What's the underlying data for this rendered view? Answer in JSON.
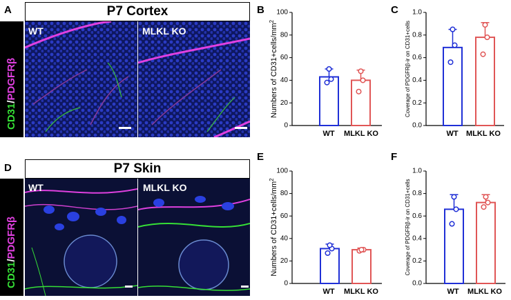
{
  "figure": {
    "panels": {
      "A": {
        "letter": "A",
        "title": "P7 Cortex",
        "left_label": "WT",
        "right_label": "MLKL KO"
      },
      "D": {
        "letter": "D",
        "title": "P7 Skin",
        "left_label": "WT",
        "right_label": "MLKL KO"
      }
    },
    "side_label": {
      "part1": "CD31",
      "sep": "/",
      "part2": "PDGFRβ"
    },
    "colors": {
      "green": "#36e036",
      "magenta": "#e040e0",
      "blue_bar": "#1f2fd6",
      "red_bar": "#e05555",
      "nuclei": "#1b2a9a"
    }
  },
  "chart_data": [
    {
      "letter": "B",
      "type": "bar",
      "categories": [
        "WT",
        "MLKL KO"
      ],
      "values": [
        43,
        40
      ],
      "errors": [
        7,
        9
      ],
      "points": [
        [
          38,
          41,
          50
        ],
        [
          30,
          40,
          48
        ]
      ],
      "ylabel": "Numbers of CD31+cells/mm",
      "ylabel_sup": "2",
      "ylim": [
        0,
        100
      ],
      "yticks": [
        "0",
        "20",
        "40",
        "60",
        "80",
        "100"
      ]
    },
    {
      "letter": "C",
      "type": "bar",
      "categories": [
        "WT",
        "MLKL KO"
      ],
      "values": [
        0.69,
        0.78
      ],
      "errors": [
        0.16,
        0.13
      ],
      "points": [
        [
          0.56,
          0.71,
          0.85
        ],
        [
          0.63,
          0.78,
          0.89
        ]
      ],
      "ylabel": "Coverage of PDGFRβ-ir on CD31+cells",
      "ylabel_sup": "",
      "ylim": [
        0,
        1.0
      ],
      "yticks": [
        "0.0",
        "0.2",
        "0.4",
        "0.6",
        "0.8",
        "1.0"
      ]
    },
    {
      "letter": "E",
      "type": "bar",
      "categories": [
        "WT",
        "MLKL KO"
      ],
      "values": [
        31,
        30
      ],
      "errors": [
        4,
        1.5
      ],
      "points": [
        [
          27,
          31,
          34
        ],
        [
          29,
          30,
          30
        ]
      ],
      "ylabel": "Numbers of CD31+cells/mm",
      "ylabel_sup": "2",
      "ylim": [
        0,
        100
      ],
      "yticks": [
        "0",
        "20",
        "40",
        "60",
        "80",
        "100"
      ]
    },
    {
      "letter": "F",
      "type": "bar",
      "categories": [
        "WT",
        "MLKL KO"
      ],
      "values": [
        0.66,
        0.72
      ],
      "errors": [
        0.13,
        0.07
      ],
      "points": [
        [
          0.53,
          0.66,
          0.77
        ],
        [
          0.68,
          0.72,
          0.77
        ]
      ],
      "ylabel": "Coverage of PDGFRβ-ir on CD31+cells",
      "ylabel_sup": "",
      "ylim": [
        0,
        1.0
      ],
      "yticks": [
        "0.0",
        "0.2",
        "0.4",
        "0.6",
        "0.8",
        "1.0"
      ]
    }
  ]
}
